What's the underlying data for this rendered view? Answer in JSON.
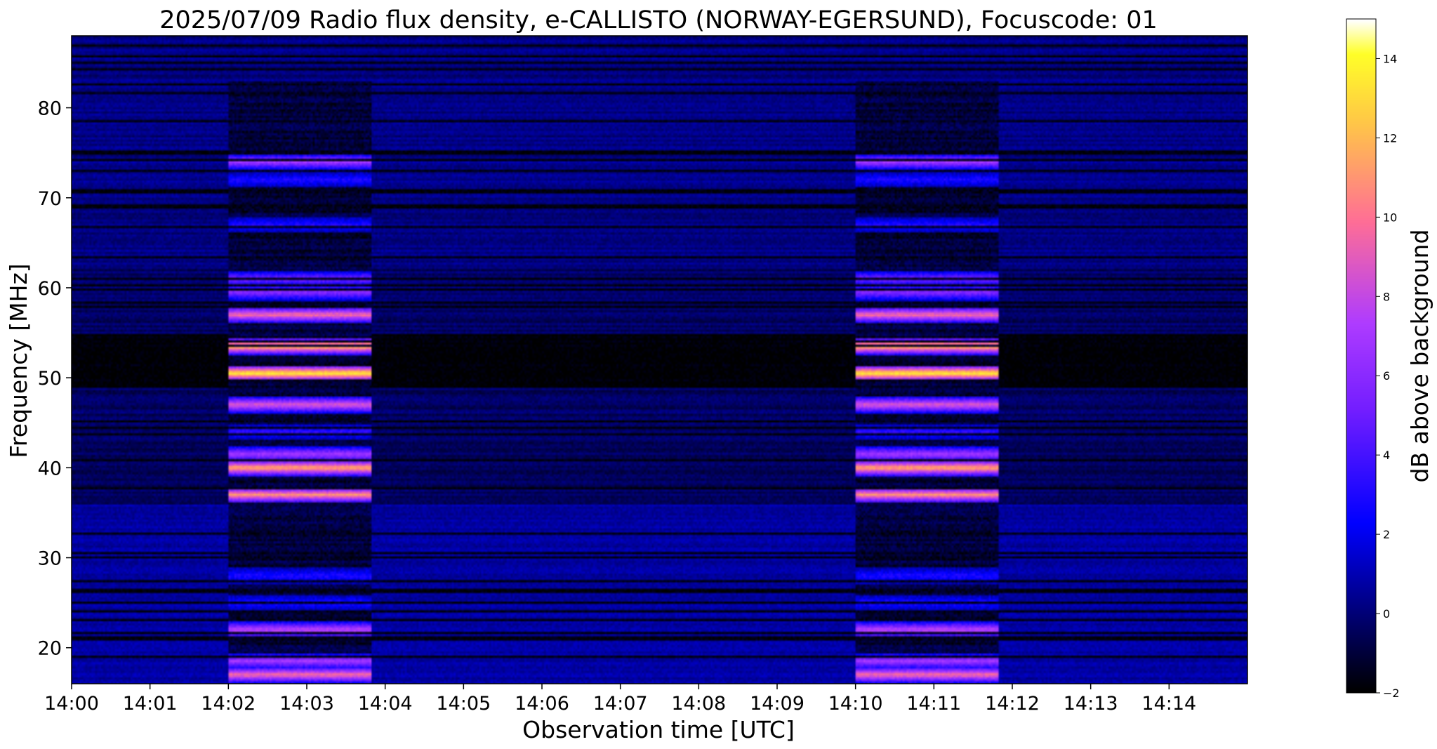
{
  "chart_data": {
    "type": "heatmap",
    "title": "2025/07/09  Radio flux density, e-CALLISTO (NORWAY-EGERSUND), Focuscode: 01",
    "xlabel": "Observation time [UTC]",
    "ylabel": "Frequency [MHz]",
    "colorbar_label": "dB above background",
    "colormap": "gnuplot2",
    "x_range_minutes_after_1400": [
      0,
      15
    ],
    "xlim": [
      "14:00",
      "14:15"
    ],
    "ylim": [
      16,
      88
    ],
    "clim": [
      -2,
      15
    ],
    "x_ticks": [
      "14:00",
      "14:01",
      "14:02",
      "14:03",
      "14:04",
      "14:05",
      "14:06",
      "14:07",
      "14:08",
      "14:09",
      "14:10",
      "14:11",
      "14:12",
      "14:13",
      "14:14"
    ],
    "y_ticks": [
      "20",
      "30",
      "40",
      "50",
      "60",
      "70",
      "80"
    ],
    "colorbar_ticks": [
      "−2",
      "0",
      "2",
      "4",
      "6",
      "8",
      "10",
      "12",
      "14"
    ],
    "bursts": [
      {
        "start": "14:02",
        "end": "14:03:50",
        "freq_range_mhz": [
          16,
          83
        ],
        "peak_db": 14
      },
      {
        "start": "14:10",
        "end": "14:11:50",
        "freq_range_mhz": [
          16,
          83
        ],
        "peak_db": 14
      }
    ],
    "burst_band_levels_db": [
      {
        "freq_mhz": 17,
        "db": 10
      },
      {
        "freq_mhz": 18.5,
        "db": 7
      },
      {
        "freq_mhz": 22,
        "db": 8
      },
      {
        "freq_mhz": 25,
        "db": 3
      },
      {
        "freq_mhz": 28,
        "db": 3
      },
      {
        "freq_mhz": 37,
        "db": 11
      },
      {
        "freq_mhz": 40,
        "db": 12
      },
      {
        "freq_mhz": 41.5,
        "db": 7
      },
      {
        "freq_mhz": 44,
        "db": 3.5
      },
      {
        "freq_mhz": 47,
        "db": 9
      },
      {
        "freq_mhz": 50.5,
        "db": 14
      },
      {
        "freq_mhz": 53.5,
        "db": 13
      },
      {
        "freq_mhz": 57,
        "db": 10
      },
      {
        "freq_mhz": 59.5,
        "db": 6
      },
      {
        "freq_mhz": 61,
        "db": 5.5
      },
      {
        "freq_mhz": 67,
        "db": 3
      },
      {
        "freq_mhz": 72,
        "db": 3
      },
      {
        "freq_mhz": 74,
        "db": 7
      }
    ]
  }
}
